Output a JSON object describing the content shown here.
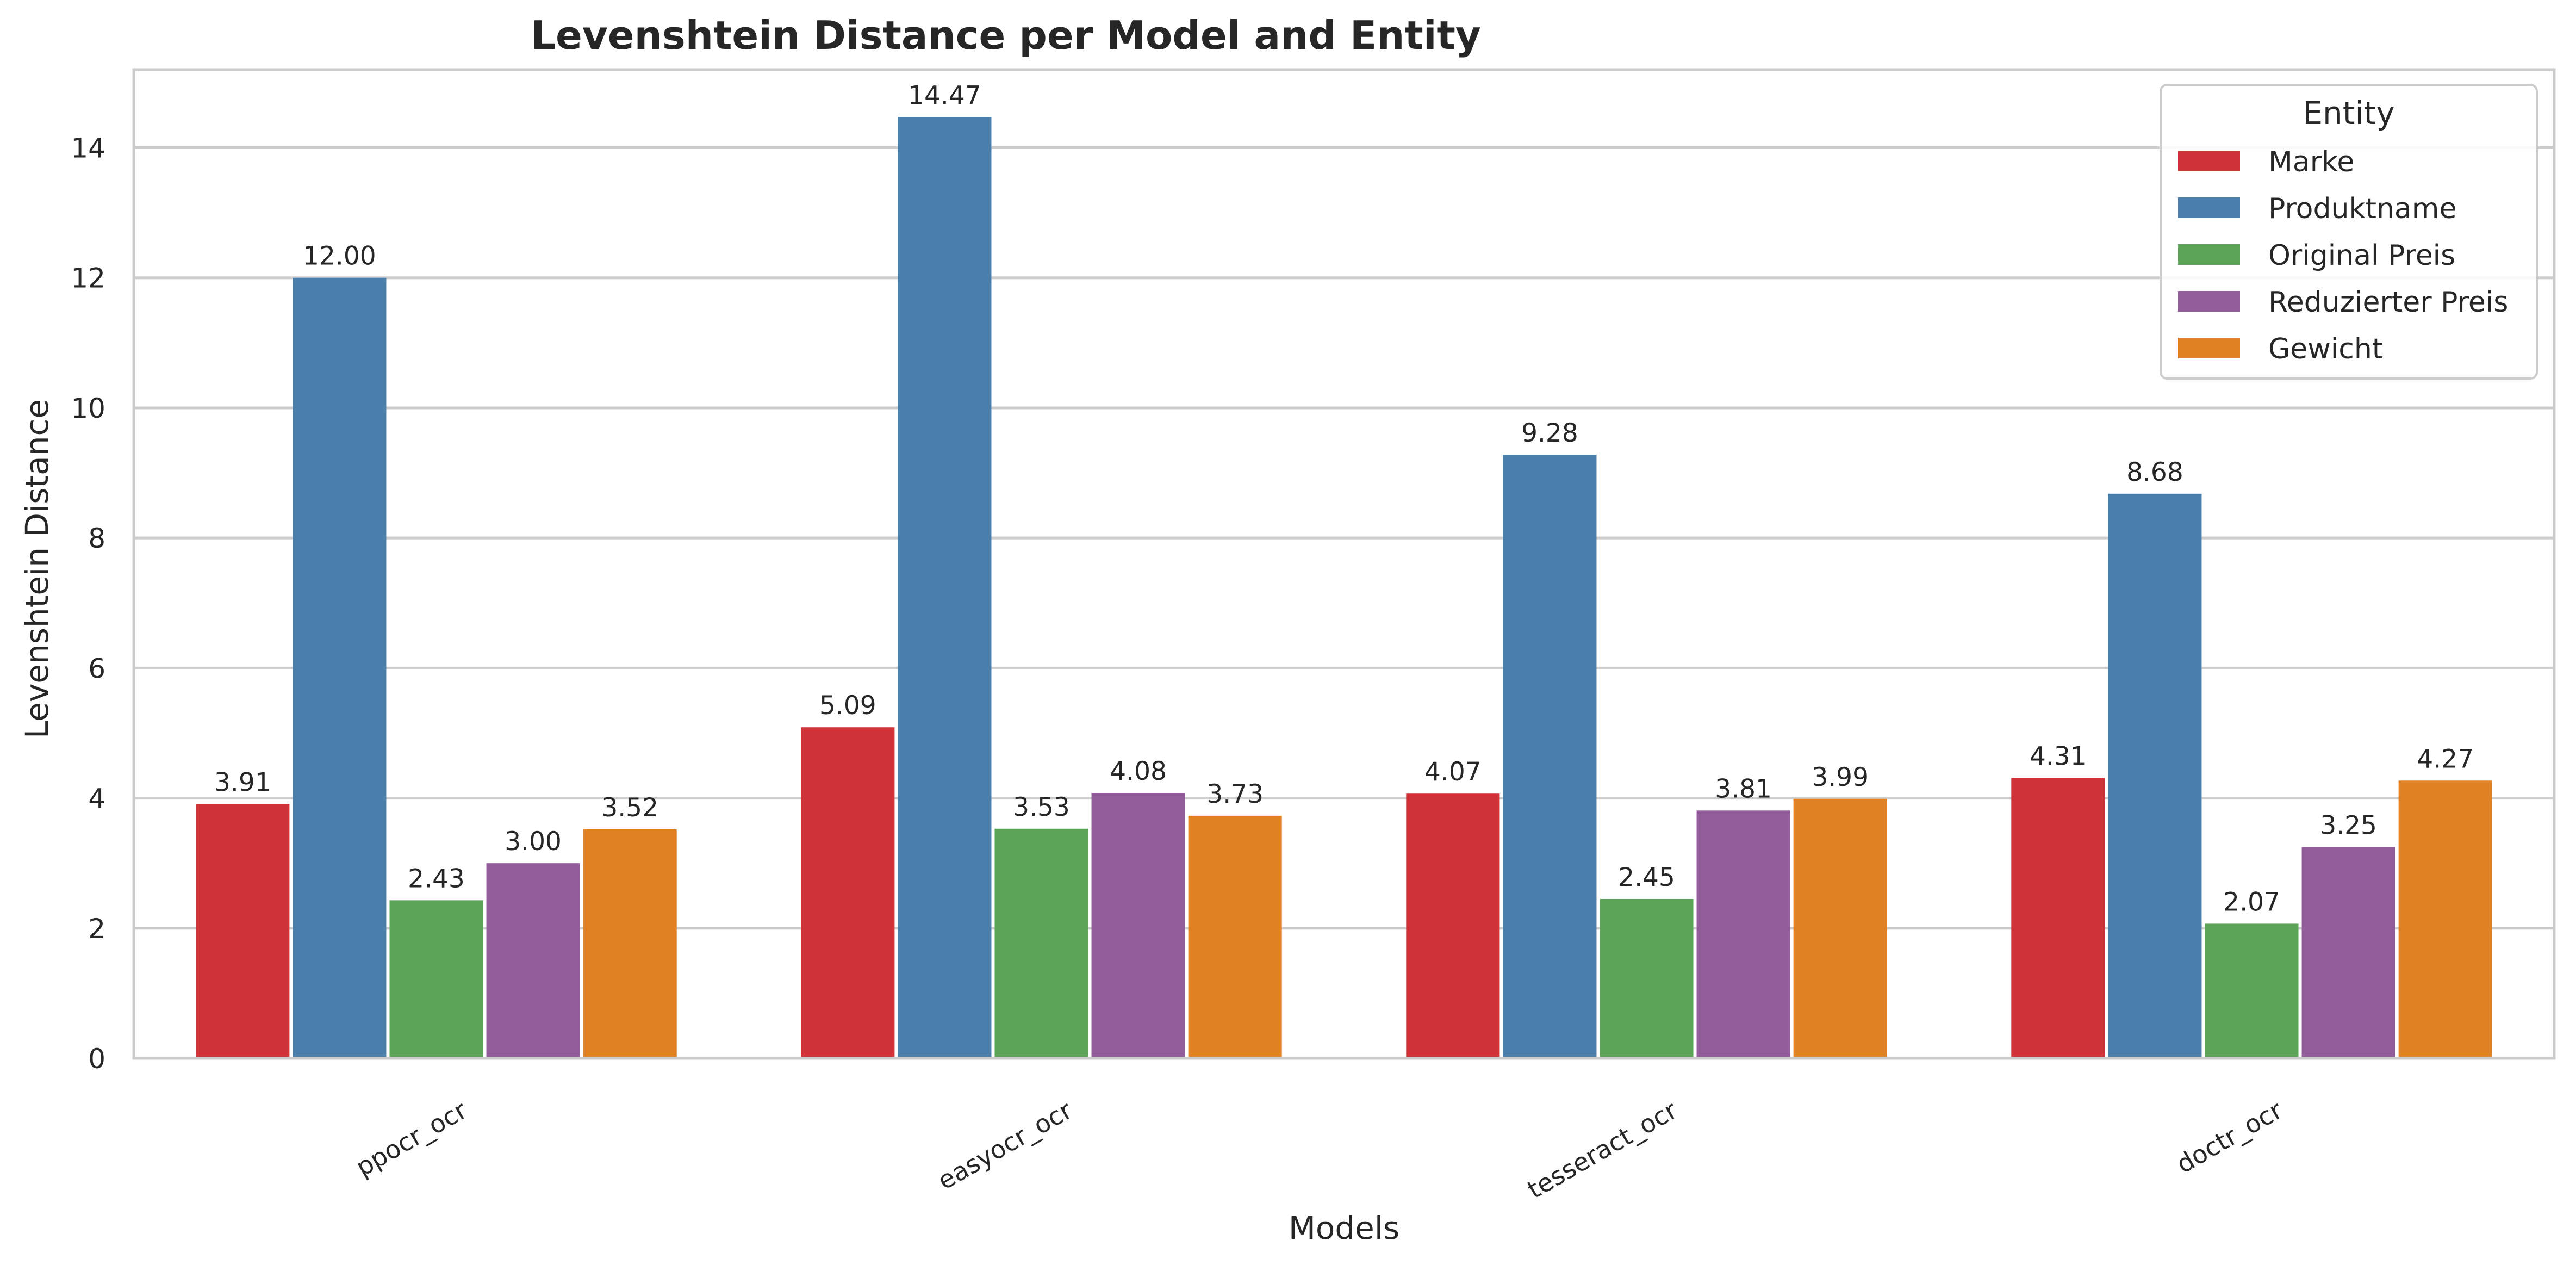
{
  "chart_data": {
    "type": "bar",
    "title": "Levenshtein Distance per Model and Entity",
    "xlabel": "Models",
    "ylabel": "Levenshtein Distance",
    "categories": [
      "ppocr_ocr",
      "easyocr_ocr",
      "tesseract_ocr",
      "doctr_ocr"
    ],
    "ylim": [
      0,
      15.2
    ],
    "yticks": [
      0,
      2,
      4,
      6,
      8,
      10,
      12,
      14
    ],
    "grid": true,
    "legend": {
      "title": "Entity",
      "placement": "top-right"
    },
    "series": [
      {
        "name": "Marke",
        "color": "#d03337",
        "values": [
          3.91,
          5.09,
          4.07,
          4.31
        ],
        "labels": [
          "3.91",
          "5.09",
          "4.07",
          "4.31"
        ]
      },
      {
        "name": "Produktname",
        "color": "#4a7eab",
        "values": [
          12.0,
          14.47,
          9.28,
          8.68
        ],
        "labels": [
          "12.00",
          "14.47",
          "9.28",
          "8.68"
        ]
      },
      {
        "name": "Original Preis",
        "color": "#5ba458",
        "values": [
          2.43,
          3.53,
          2.45,
          2.07
        ],
        "labels": [
          "2.43",
          "3.53",
          "2.45",
          "2.07"
        ]
      },
      {
        "name": "Reduzierter Preis",
        "color": "#925c9a",
        "values": [
          3.0,
          4.08,
          3.81,
          3.25
        ],
        "labels": [
          "3.00",
          "4.08",
          "3.81",
          "3.25"
        ]
      },
      {
        "name": "Gewicht",
        "color": "#e08123",
        "values": [
          3.52,
          3.73,
          3.99,
          4.27
        ],
        "labels": [
          "3.52",
          "3.73",
          "3.99",
          "4.27"
        ]
      }
    ]
  }
}
